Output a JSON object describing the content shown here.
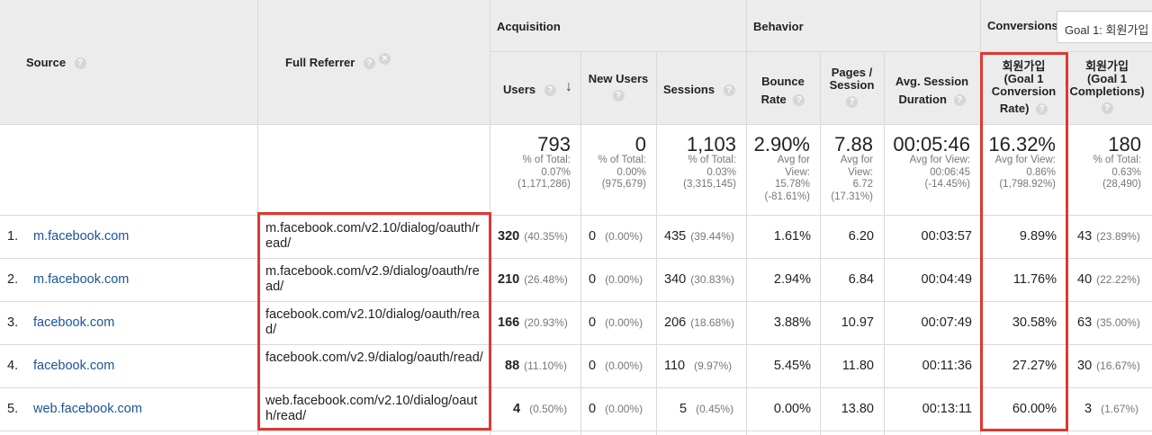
{
  "header": {
    "groups": {
      "acquisition": "Acquisition",
      "behavior": "Behavior",
      "conversions": "Conversions"
    },
    "goal_selector": "Goal 1: 회원가입",
    "columns": {
      "source": "Source",
      "full_referrer": "Full Referrer",
      "users": "Users",
      "new_users": "New Users",
      "sessions": "Sessions",
      "bounce_rate": [
        "Bounce",
        "Rate"
      ],
      "pages_session": [
        "Pages /",
        "Session"
      ],
      "avg_session_duration": [
        "Avg. Session",
        "Duration"
      ],
      "goal_conv_rate": [
        "회원가입",
        "(Goal 1",
        "Conversion",
        "Rate)"
      ],
      "goal_completions": [
        "회원가입",
        "(Goal 1",
        "Completions)"
      ]
    }
  },
  "totals": {
    "users": {
      "value": "793",
      "sub": [
        "% of Total:",
        "0.07%",
        "(1,171,286)"
      ]
    },
    "new_users": {
      "value": "0",
      "sub": [
        "% of Total:",
        "0.00%",
        "(975,679)"
      ]
    },
    "sessions": {
      "value": "1,103",
      "sub": [
        "% of Total:",
        "0.03%",
        "(3,315,145)"
      ]
    },
    "bounce_rate": {
      "value": "2.90%",
      "sub": [
        "Avg for",
        "View:",
        "15.78%",
        "(-81.61%)"
      ]
    },
    "pages_session": {
      "value": "7.88",
      "sub": [
        "Avg for",
        "View:",
        "6.72",
        "(17.31%)"
      ]
    },
    "avg_session_duration": {
      "value": "00:05:46",
      "sub": [
        "Avg for View:",
        "00:06:45",
        "(-14.45%)"
      ]
    },
    "goal_conv_rate": {
      "value": "16.32%",
      "sub": [
        "Avg for View:",
        "0.86%",
        "(1,798.92%)"
      ]
    },
    "goal_completions": {
      "value": "180",
      "sub": [
        "% of Total:",
        "0.63%",
        "(28,490)"
      ]
    }
  },
  "rows": [
    {
      "index": "1.",
      "source": "m.facebook.com",
      "referrer": "m.facebook.com/v2.10/dialog/oauth/read/",
      "users": "320",
      "users_pct": "(40.35%)",
      "new_users": "0",
      "new_users_pct": "(0.00%)",
      "sessions": "435",
      "sessions_pct": "(39.44%)",
      "bounce": "1.61%",
      "pages": "6.20",
      "duration": "00:03:57",
      "conv_rate": "9.89%",
      "completions": "43",
      "completions_pct": "(23.89%)"
    },
    {
      "index": "2.",
      "source": "m.facebook.com",
      "referrer": "m.facebook.com/v2.9/dialog/oauth/read/",
      "users": "210",
      "users_pct": "(26.48%)",
      "new_users": "0",
      "new_users_pct": "(0.00%)",
      "sessions": "340",
      "sessions_pct": "(30.83%)",
      "bounce": "2.94%",
      "pages": "6.84",
      "duration": "00:04:49",
      "conv_rate": "11.76%",
      "completions": "40",
      "completions_pct": "(22.22%)"
    },
    {
      "index": "3.",
      "source": "facebook.com",
      "referrer": "facebook.com/v2.10/dialog/oauth/read/",
      "users": "166",
      "users_pct": "(20.93%)",
      "new_users": "0",
      "new_users_pct": "(0.00%)",
      "sessions": "206",
      "sessions_pct": "(18.68%)",
      "bounce": "3.88%",
      "pages": "10.97",
      "duration": "00:07:49",
      "conv_rate": "30.58%",
      "completions": "63",
      "completions_pct": "(35.00%)"
    },
    {
      "index": "4.",
      "source": "facebook.com",
      "referrer": "facebook.com/v2.9/dialog/oauth/read/",
      "users": "88",
      "users_pct": "(11.10%)",
      "new_users": "0",
      "new_users_pct": "(0.00%)",
      "sessions": "110",
      "sessions_pct": "(9.97%)",
      "bounce": "5.45%",
      "pages": "11.80",
      "duration": "00:11:36",
      "conv_rate": "27.27%",
      "completions": "30",
      "completions_pct": "(16.67%)"
    },
    {
      "index": "5.",
      "source": "web.facebook.com",
      "referrer": "web.facebook.com/v2.10/dialog/oauth/read/",
      "users": "4",
      "users_pct": "(0.50%)",
      "new_users": "0",
      "new_users_pct": "(0.00%)",
      "sessions": "5",
      "sessions_pct": "(0.45%)",
      "bounce": "0.00%",
      "pages": "13.80",
      "duration": "00:13:11",
      "conv_rate": "60.00%",
      "completions": "3",
      "completions_pct": "(1.67%)"
    }
  ],
  "icons": {
    "help": "?",
    "remove": "×",
    "sort": "↓"
  },
  "colors": {
    "link": "#1a5396",
    "highlight_box": "#db3a34",
    "header_bg": "#ececec"
  }
}
